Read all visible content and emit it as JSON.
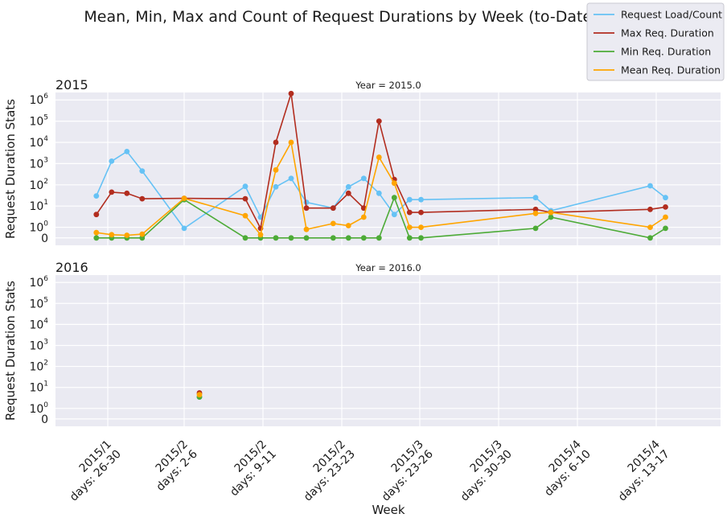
{
  "chart_data": {
    "type": "line",
    "title": "Mean, Min, Max and Count of Request Durations by Week (to-Date)",
    "xlabel": "Week",
    "ylabel": "Request Duration Stats",
    "yscale": "symlog",
    "grid": true,
    "legend_position": "top-right",
    "x_ticks": [
      {
        "line1": "2015/1",
        "line2": "days: 26-30"
      },
      {
        "line1": "2015/2",
        "line2": "days: 2-6"
      },
      {
        "line1": "2015/2",
        "line2": "days: 9-11"
      },
      {
        "line1": "2015/2",
        "line2": "days: 23-23"
      },
      {
        "line1": "2015/3",
        "line2": "days: 23-26"
      },
      {
        "line1": "2015/3",
        "line2": "days: 30-30"
      },
      {
        "line1": "2015/4",
        "line2": "days: 6-10"
      },
      {
        "line1": "2015/4",
        "line2": "days: 13-17"
      }
    ],
    "y_ticks": [
      {
        "base": "0",
        "exp": ""
      },
      {
        "base": "10",
        "exp": "0"
      },
      {
        "base": "10",
        "exp": "1"
      },
      {
        "base": "10",
        "exp": "2"
      },
      {
        "base": "10",
        "exp": "3"
      },
      {
        "base": "10",
        "exp": "4"
      },
      {
        "base": "10",
        "exp": "5"
      },
      {
        "base": "10",
        "exp": "6"
      }
    ],
    "series_colors": {
      "Request Load/Count": "#66c2f5",
      "Max Req. Duration": "#b22d1f",
      "Min Req. Duration": "#4dab37",
      "Mean Req. Duration": "#ffa500"
    },
    "legend": [
      "Request Load/Count",
      "Max Req. Duration",
      "Min Req. Duration",
      "Mean Req. Duration"
    ],
    "panels": [
      {
        "year_label": "2015",
        "facet_label": "Year = 2015.0",
        "x": [
          -0.15,
          0.05,
          0.25,
          0.45,
          1.0,
          1.8,
          2.0,
          2.2,
          2.4,
          2.6,
          2.95,
          3.15,
          3.35,
          3.55,
          3.75,
          3.95,
          4.1,
          5.6,
          5.8,
          7.1,
          7.3
        ],
        "series": [
          {
            "name": "Request Load/Count",
            "values": [
              30,
              1300,
              3700,
              450,
              0.9,
              85,
              3,
              80,
              200,
              15,
              8,
              80,
              200,
              40,
              4,
              20,
              20,
              25,
              6,
              90,
              25
            ]
          },
          {
            "name": "Max Req. Duration",
            "values": [
              4,
              45,
              40,
              22,
              23,
              22,
              0.9,
              10000,
              2000000,
              8,
              8,
              40,
              8,
              100000,
              180,
              5,
              5,
              7,
              5,
              7,
              9
            ]
          },
          {
            "name": "Min Req. Duration",
            "values": [
              0,
              0,
              0,
              0,
              20,
              0,
              0,
              0,
              0,
              0,
              0,
              0,
              0,
              0,
              25,
              0,
              0,
              0.9,
              3,
              0,
              0.9
            ]
          },
          {
            "name": "Mean Req. Duration",
            "values": [
              0.5,
              0.3,
              0.25,
              0.35,
              23,
              3.5,
              0.3,
              500,
              10000,
              0.8,
              1.5,
              1.2,
              3,
              2000,
              120,
              1,
              1,
              4.5,
              5,
              1,
              3
            ]
          }
        ]
      },
      {
        "year_label": "2016",
        "facet_label": "Year = 2016.0",
        "x": [
          1.2
        ],
        "series": [
          {
            "name": "Request Load/Count",
            "values": [
              3.5
            ]
          },
          {
            "name": "Max Req. Duration",
            "values": [
              5.5
            ]
          },
          {
            "name": "Min Req. Duration",
            "values": [
              3.5
            ]
          },
          {
            "name": "Mean Req. Duration",
            "values": [
              4.5
            ]
          }
        ]
      }
    ]
  }
}
